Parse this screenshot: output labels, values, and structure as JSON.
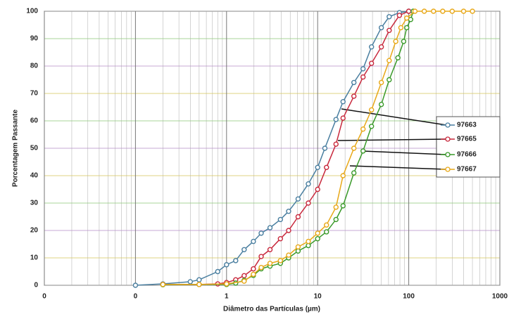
{
  "chart_data": {
    "type": "line",
    "x_label": "Diâmetro das Partículas (µm)",
    "y_label": "Porcentagem Passante",
    "xlim": [
      0.01,
      1000
    ],
    "ylim": [
      0,
      100
    ],
    "log_x": true,
    "grid": true,
    "legend": "right",
    "xticks": [
      {
        "value": 0.01,
        "label": "0"
      },
      {
        "value": 0.1,
        "label": "0"
      },
      1,
      10,
      100,
      1000
    ],
    "yticks": [
      0,
      10,
      20,
      30,
      40,
      50,
      60,
      70,
      80,
      90,
      100
    ],
    "series": [
      {
        "name": "97663",
        "color": "#4a7fa0",
        "x": [
          0.1,
          0.2,
          0.4,
          0.5,
          0.8,
          1,
          1.26,
          1.56,
          1.97,
          2.4,
          3.0,
          3.9,
          4.8,
          6.1,
          7.9,
          10,
          12,
          15.9,
          19,
          25,
          31.5,
          39,
          50,
          61,
          79,
          100
        ],
        "values": [
          0,
          0.5,
          1.3,
          2,
          5,
          7.5,
          9,
          13,
          16,
          19,
          21,
          24,
          27,
          31.5,
          37,
          43,
          50,
          60.5,
          67,
          74,
          79,
          87,
          94,
          98,
          99.5,
          100
        ]
      },
      {
        "name": "97665",
        "color": "#c8283c",
        "x": [
          0.2,
          0.5,
          0.8,
          1,
          1.26,
          1.56,
          1.97,
          2.4,
          3.0,
          3.9,
          4.8,
          6.1,
          7.9,
          10,
          12.5,
          15.9,
          19,
          25,
          31.5,
          39,
          50,
          61,
          79,
          100
        ],
        "values": [
          0.3,
          0.3,
          0.5,
          1,
          2,
          3.5,
          6,
          10.5,
          13,
          17,
          20,
          25,
          30,
          35,
          43,
          51.5,
          61,
          69,
          76,
          81,
          87,
          93,
          98.5,
          100
        ]
      },
      {
        "name": "97666",
        "color": "#3a9a2a",
        "x": [
          0.2,
          0.5,
          1,
          1.26,
          1.56,
          1.97,
          2.4,
          3.0,
          3.9,
          4.8,
          6.1,
          7.9,
          10,
          12.5,
          15.9,
          19,
          25,
          31.5,
          39,
          50,
          61,
          76,
          88,
          95,
          105,
          112
        ],
        "values": [
          0.2,
          0.3,
          0.3,
          0.8,
          1.8,
          3.6,
          6,
          7,
          8,
          10,
          12.5,
          14.5,
          17,
          19.5,
          24,
          29,
          41,
          49,
          58,
          66,
          75,
          83,
          89,
          94,
          97,
          100
        ]
      },
      {
        "name": "97667",
        "color": "#e8a818",
        "x": [
          0.2,
          0.5,
          1,
          1.56,
          1.97,
          2.4,
          3.0,
          3.9,
          4.8,
          6.1,
          7.9,
          10,
          12.5,
          15.9,
          19,
          25,
          31.5,
          39,
          50,
          61,
          72,
          82,
          95,
          117,
          148,
          187,
          236,
          300,
          400,
          500
        ],
        "values": [
          0.3,
          0.3,
          0.5,
          1.5,
          4,
          6.5,
          8,
          9,
          11,
          14,
          16,
          19,
          22,
          28.5,
          40,
          50,
          57,
          64,
          74,
          82,
          89,
          94,
          97.5,
          100,
          100,
          100,
          100,
          100,
          100,
          100
        ]
      }
    ]
  }
}
